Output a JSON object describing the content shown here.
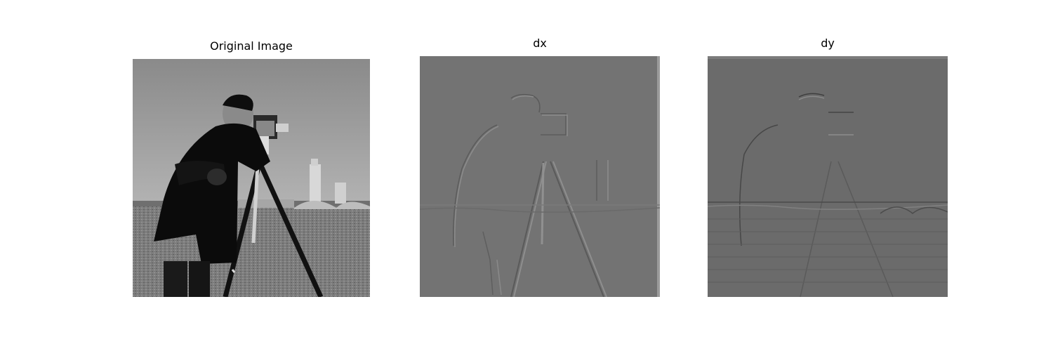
{
  "figure": {
    "panels": [
      {
        "title": "Original Image"
      },
      {
        "title": "dx"
      },
      {
        "title": "dy"
      }
    ]
  }
}
